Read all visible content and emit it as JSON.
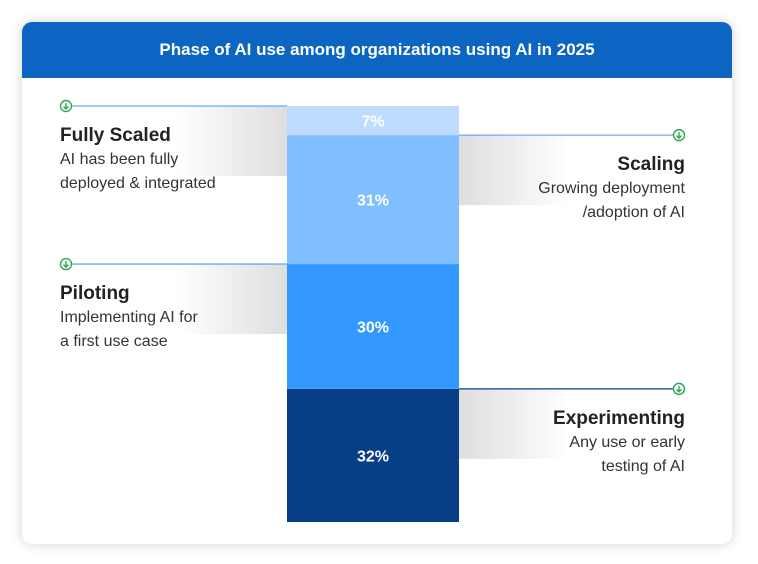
{
  "chart_data": {
    "type": "stacked-bar",
    "title": "Phase of AI use among organizations using AI in 2025",
    "categories": [
      "Experimenting",
      "Piloting",
      "Scaling",
      "Fully Scaled"
    ],
    "values": [
      32,
      30,
      31,
      7
    ],
    "value_labels": [
      "32%",
      "30%",
      "31%",
      "7%"
    ],
    "unit": "%",
    "segments": [
      {
        "name": "Experimenting",
        "value": 32,
        "label": "32%",
        "description": [
          "Any use or early",
          "testing of AI"
        ],
        "color": "#063f85",
        "label_side": "right"
      },
      {
        "name": "Piloting",
        "value": 30,
        "label": "30%",
        "description": [
          "Implementing AI for",
          "a first use case"
        ],
        "color": "#3399ff",
        "label_side": "left"
      },
      {
        "name": "Scaling",
        "value": 31,
        "label": "31%",
        "description": [
          "Growing deployment",
          "/adoption of AI"
        ],
        "color": "#80bfff",
        "label_side": "right"
      },
      {
        "name": "Fully Scaled",
        "value": 7,
        "label": "7%",
        "description": [
          "AI has been fully",
          "deployed & integrated"
        ],
        "color": "#bfdcff",
        "label_side": "left"
      }
    ]
  },
  "colors": {
    "header_bg": "#0c65c2",
    "header_text": "#ffffff",
    "label_title": "#222222",
    "label_body": "#333333",
    "leader_line_light": "#66aef5",
    "leader_line_dark": "#063f85",
    "marker_icon": "#2ea84f"
  },
  "icons": {
    "leader_marker": "download-arrow-icon"
  }
}
